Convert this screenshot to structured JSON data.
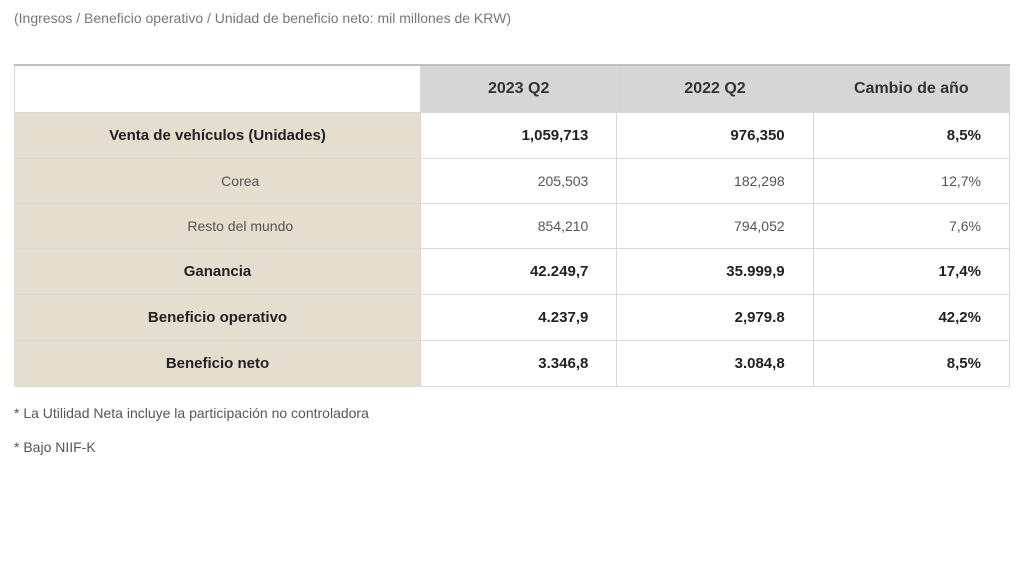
{
  "subtitle": "(Ingresos / Beneficio operativo / Unidad de beneficio neto: mil millones de KRW)",
  "headers": {
    "col1": "2023 Q2",
    "col2": "2022 Q2",
    "col3": "Cambio de año"
  },
  "rows": {
    "sales": {
      "label": "Venta de vehículos (Unidades)",
      "q2_2023": "1,059,713",
      "q2_2022": "976,350",
      "yoy": "8,5%"
    },
    "korea": {
      "label": "Corea",
      "q2_2023": "205,503",
      "q2_2022": "182,298",
      "yoy": "12,7%"
    },
    "rest": {
      "label": "Resto del mundo",
      "q2_2023": "854,210",
      "q2_2022": "794,052",
      "yoy": "7,6%"
    },
    "revenue": {
      "label": "Ganancia",
      "q2_2023": "42.249,7",
      "q2_2022": "35.999,9",
      "yoy": "17,4%"
    },
    "op_profit": {
      "label": "Beneficio operativo",
      "q2_2023": "4.237,9",
      "q2_2022": "2,979.8",
      "yoy": "42,2%"
    },
    "net_profit": {
      "label": "Beneficio neto",
      "q2_2023": "3.346,8",
      "q2_2022": "3.084,8",
      "yoy": "8,5%"
    }
  },
  "footnotes": {
    "f1": "* La Utilidad Neta incluye la participación no controladora",
    "f2": "* Bajo NIIF-K"
  },
  "colors": {
    "header_bg": "#d6d6d6",
    "label_bg": "#e5ddcd",
    "border": "#d9d9d9",
    "text": "#333333",
    "sub_text": "#555555",
    "subtitle_text": "#777777"
  }
}
